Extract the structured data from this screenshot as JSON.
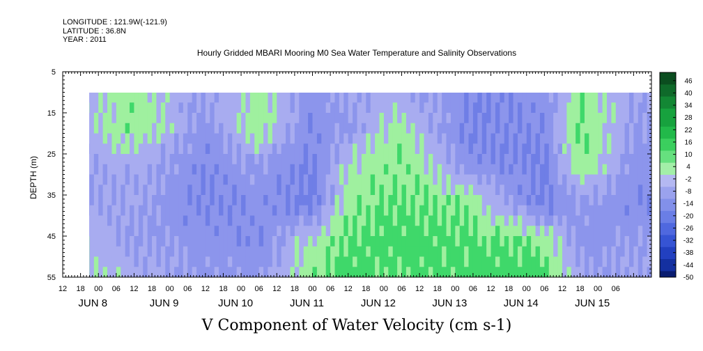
{
  "header": {
    "longitude": "LONGITUDE : 121.9W(-121.9)",
    "latitude": "LATITUDE : 36.8N",
    "year": "YEAR : 2011",
    "title": "Hourly Gridded MBARI Mooring M0 Sea Water Temperature and Salinity Observations"
  },
  "caption": "V Component of Water Velocity (cm s-1)",
  "chart_data": {
    "type": "heatmap",
    "title": "Hourly Gridded MBARI Mooring M0 Sea Water Temperature and Salinity Observations",
    "xlabel": "",
    "ylabel": "DEPTH (m)",
    "x_hour_range": [
      12,
      210
    ],
    "x_time_ticks": [
      "12",
      "18",
      "00",
      "06",
      "12",
      "18",
      "00",
      "06",
      "12",
      "18",
      "00",
      "06",
      "12",
      "18",
      "00",
      "06",
      "12",
      "18",
      "00",
      "06",
      "12",
      "18",
      "00",
      "06",
      "12",
      "18",
      "00",
      "06",
      "12",
      "18",
      "00",
      "06"
    ],
    "x_date_labels": [
      "JUN  8",
      "JUN  9",
      "JUN 10",
      "JUN 11",
      "JUN 12",
      "JUN 13",
      "JUN 14",
      "JUN 15"
    ],
    "y_ticks": [
      "5",
      "15",
      "25",
      "35",
      "45",
      "55"
    ],
    "ylim": [
      5,
      55
    ],
    "data_depth_range": [
      10,
      55
    ],
    "data_time_start_hour": 18,
    "colorbar": {
      "ticks": [
        "46",
        "40",
        "34",
        "28",
        "22",
        "16",
        "10",
        "4",
        "-2",
        "-8",
        "-14",
        "-20",
        "-26",
        "-32",
        "-38",
        "-44",
        "-50"
      ],
      "range": [
        -50,
        50
      ]
    },
    "samples": [
      {
        "hour": 18,
        "v": [
          -2,
          -3,
          -4,
          -5,
          1,
          2
        ]
      },
      {
        "hour": 36,
        "v": [
          5,
          6,
          -3,
          -4,
          -6,
          -2
        ]
      },
      {
        "hour": 60,
        "v": [
          -6,
          -8,
          -10,
          -12,
          -8,
          -6
        ]
      },
      {
        "hour": 78,
        "v": [
          4,
          5,
          -6,
          -8,
          -10,
          -6
        ]
      },
      {
        "hour": 96,
        "v": [
          -8,
          -10,
          -12,
          -14,
          3,
          5
        ]
      },
      {
        "hour": 108,
        "v": [
          -4,
          -6,
          2,
          5,
          8,
          10
        ]
      },
      {
        "hour": 126,
        "v": [
          -3,
          4,
          6,
          8,
          10,
          8
        ]
      },
      {
        "hour": 150,
        "v": [
          -10,
          -12,
          -8,
          5,
          8,
          10
        ]
      },
      {
        "hour": 174,
        "v": [
          -8,
          -10,
          -12,
          -14,
          6,
          10
        ]
      },
      {
        "hour": 186,
        "v": [
          5,
          8,
          6,
          -6,
          -8,
          -4
        ]
      },
      {
        "hour": 204,
        "v": [
          -4,
          -6,
          -8,
          -10,
          -6,
          -4
        ]
      }
    ]
  },
  "colors": {
    "positive_light": "#9ff09f",
    "positive_mid": "#3fd86a",
    "negative_light": "#a8acf0",
    "negative_mid": "#6f7ee6",
    "negative_dark": "#4055d8"
  }
}
